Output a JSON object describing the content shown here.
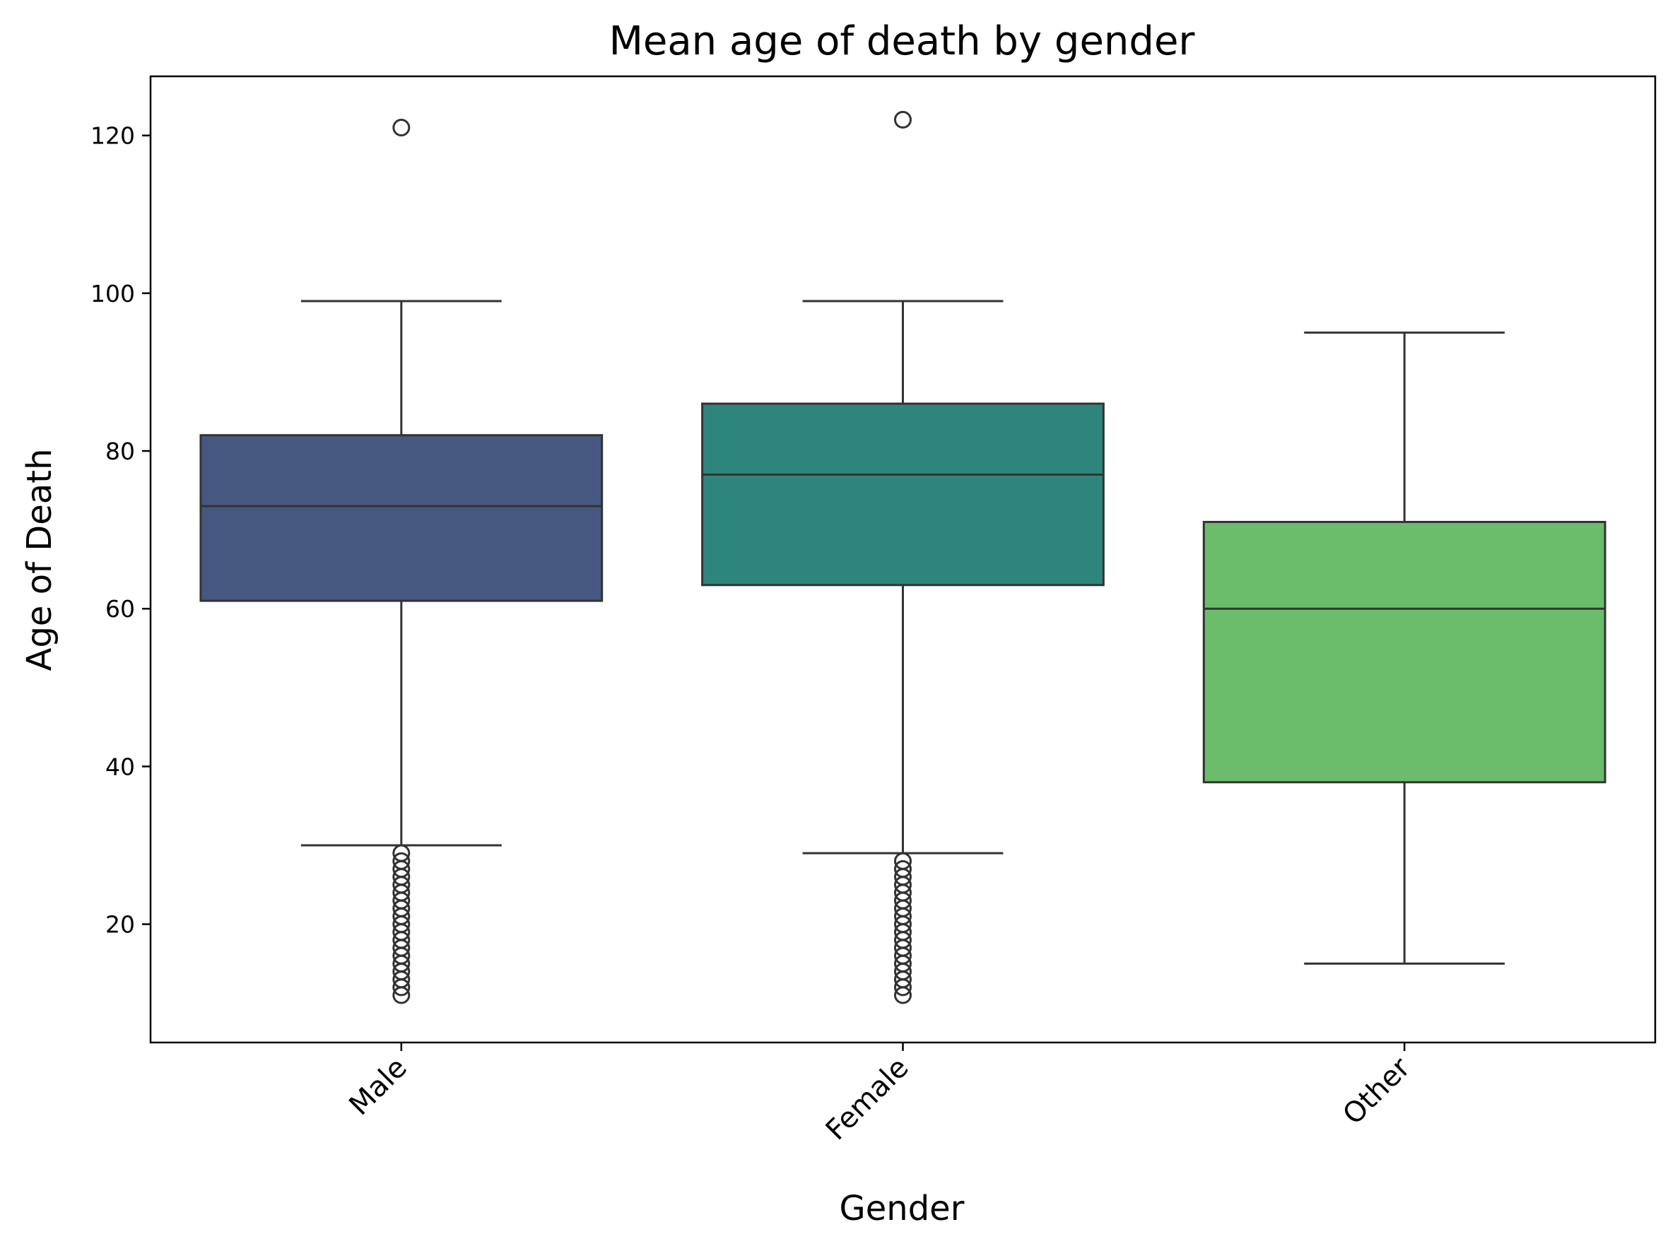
{
  "chart_data": {
    "type": "box",
    "title": "Mean age of death by gender",
    "xlabel": "Gender",
    "ylabel": "Age of Death",
    "categories": [
      "Male",
      "Female",
      "Other"
    ],
    "yticks": [
      "20",
      "40",
      "60",
      "80",
      "100",
      "120"
    ],
    "ylim": [
      5,
      127.5
    ],
    "grid": false,
    "legend": "none",
    "boxes": [
      {
        "category": "Male",
        "color": "#46587f",
        "whisker_low": 30,
        "q1": 61,
        "median": 73,
        "q3": 82,
        "whisker_high": 99,
        "outliers": [
          11,
          12,
          13,
          14,
          15,
          16,
          17,
          18,
          19,
          20,
          21,
          22,
          23,
          24,
          25,
          26,
          27,
          28,
          29,
          121
        ]
      },
      {
        "category": "Female",
        "color": "#2e857d",
        "whisker_low": 29,
        "q1": 63,
        "median": 77,
        "q3": 86,
        "whisker_high": 99,
        "outliers": [
          11,
          12,
          13,
          14,
          15,
          16,
          17,
          18,
          19,
          20,
          21,
          22,
          23,
          24,
          25,
          26,
          27,
          28,
          122
        ]
      },
      {
        "category": "Other",
        "color": "#6cbd6b",
        "whisker_low": 15,
        "q1": 38,
        "median": 60,
        "q3": 71,
        "whisker_high": 95,
        "outliers": []
      }
    ],
    "colors": {
      "line": "#333333",
      "axis": "#000000"
    }
  }
}
